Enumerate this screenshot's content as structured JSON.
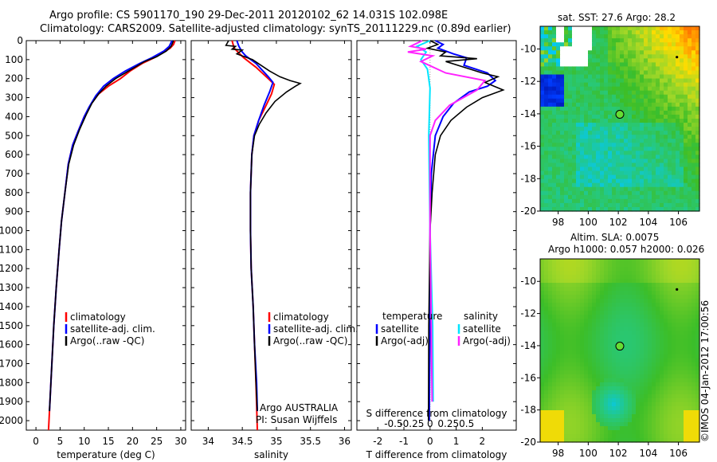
{
  "header": {
    "title_line1": "Argo profile: CS 5901170_190 29-Dec-2011 20120102_62 14.031S 102.098E",
    "title_line2": "Climatology: CARS2009. Satellite-adjusted climatology: synTS_20111229.nc (0.89d earlier)"
  },
  "depth_axis": {
    "min": 0,
    "max": 2050,
    "ticks": [
      0,
      100,
      200,
      300,
      400,
      500,
      600,
      700,
      800,
      900,
      1000,
      1100,
      1200,
      1300,
      1400,
      1500,
      1600,
      1700,
      1800,
      1900,
      2000
    ]
  },
  "colors": {
    "climatology": "#ff0000",
    "satellite": "#0000ff",
    "argo": "#000000",
    "salinity_satellite": "#00e5ff",
    "salinity_argo": "#ff22ff",
    "marker": "#66dd33"
  },
  "chart_data": [
    {
      "type": "line",
      "xlabel": "temperature (deg C)",
      "xlim": [
        -2,
        31
      ],
      "ylim": [
        0,
        2050
      ],
      "xticks": [
        0,
        5,
        10,
        15,
        20,
        25,
        30
      ],
      "legend_position": "bottom-left",
      "series": [
        {
          "name": "climatology",
          "color": "#ff0000",
          "points": [
            [
              28.8,
              0
            ],
            [
              28.5,
              20
            ],
            [
              27.8,
              40
            ],
            [
              26.5,
              60
            ],
            [
              24.5,
              90
            ],
            [
              22,
              120
            ],
            [
              19.5,
              160
            ],
            [
              17.5,
              200
            ],
            [
              15,
              240
            ],
            [
              13,
              280
            ],
            [
              11.5,
              330
            ],
            [
              10,
              400
            ],
            [
              8.7,
              480
            ],
            [
              7.6,
              550
            ],
            [
              6.7,
              650
            ],
            [
              6,
              800
            ],
            [
              5.3,
              950
            ],
            [
              4.8,
              1100
            ],
            [
              4.2,
              1300
            ],
            [
              3.7,
              1500
            ],
            [
              3.3,
              1700
            ],
            [
              2.9,
              1900
            ],
            [
              2.6,
              2050
            ]
          ]
        },
        {
          "name": "satellite-adj. clim.",
          "color": "#0000ff",
          "points": [
            [
              28.2,
              0
            ],
            [
              27.6,
              30
            ],
            [
              26.5,
              55
            ],
            [
              24,
              90
            ],
            [
              21.5,
              120
            ],
            [
              18.5,
              160
            ],
            [
              16,
              200
            ],
            [
              14,
              240
            ],
            [
              12.4,
              290
            ],
            [
              11,
              350
            ],
            [
              10,
              400
            ],
            [
              8.7,
              480
            ],
            [
              7.6,
              550
            ],
            [
              6.7,
              650
            ],
            [
              6,
              800
            ],
            [
              5.3,
              950
            ],
            [
              4.8,
              1100
            ],
            [
              4.2,
              1300
            ],
            [
              3.7,
              1500
            ],
            [
              3.3,
              1700
            ],
            [
              2.9,
              1900
            ],
            [
              2.8,
              1950
            ]
          ]
        },
        {
          "name": "Argo(..raw -QC)",
          "color": "#000000",
          "points": [
            [
              28.5,
              0
            ],
            [
              28,
              30
            ],
            [
              27,
              55
            ],
            [
              25,
              85
            ],
            [
              22.5,
              110
            ],
            [
              20.5,
              140
            ],
            [
              18.5,
              170
            ],
            [
              16.5,
              200
            ],
            [
              14.5,
              240
            ],
            [
              13,
              280
            ],
            [
              11.6,
              330
            ],
            [
              10.4,
              390
            ],
            [
              9,
              470
            ],
            [
              7.8,
              550
            ],
            [
              6.8,
              650
            ],
            [
              6,
              800
            ],
            [
              5.3,
              950
            ],
            [
              4.8,
              1100
            ],
            [
              4.2,
              1300
            ],
            [
              3.7,
              1500
            ],
            [
              3.3,
              1700
            ],
            [
              2.9,
              1900
            ],
            [
              2.8,
              1950
            ]
          ]
        }
      ]
    },
    {
      "type": "line",
      "xlabel": "salinity",
      "xlim": [
        33.75,
        36.1
      ],
      "ylim": [
        0,
        2050
      ],
      "xticks": [
        34,
        34.5,
        35,
        35.5,
        36
      ],
      "legend_position": "bottom-right",
      "annotation_line1": "Argo AUSTRALIA",
      "annotation_line2": "PI: Susan Wijffels",
      "series": [
        {
          "name": "climatology",
          "color": "#ff0000",
          "points": [
            [
              34.35,
              0
            ],
            [
              34.38,
              40
            ],
            [
              34.52,
              90
            ],
            [
              34.7,
              140
            ],
            [
              34.88,
              200
            ],
            [
              34.97,
              230
            ],
            [
              34.93,
              280
            ],
            [
              34.85,
              340
            ],
            [
              34.74,
              420
            ],
            [
              34.67,
              500
            ],
            [
              34.64,
              600
            ],
            [
              34.62,
              800
            ],
            [
              34.62,
              1000
            ],
            [
              34.63,
              1200
            ],
            [
              34.66,
              1400
            ],
            [
              34.68,
              1600
            ],
            [
              34.7,
              1800
            ],
            [
              34.72,
              2050
            ]
          ]
        },
        {
          "name": "satellite-adj. clim.",
          "color": "#0000ff",
          "points": [
            [
              34.42,
              0
            ],
            [
              34.45,
              30
            ],
            [
              34.5,
              60
            ],
            [
              34.55,
              80
            ],
            [
              34.7,
              120
            ],
            [
              34.88,
              190
            ],
            [
              34.95,
              220
            ],
            [
              34.9,
              270
            ],
            [
              34.82,
              340
            ],
            [
              34.74,
              420
            ],
            [
              34.67,
              500
            ],
            [
              34.64,
              600
            ],
            [
              34.62,
              800
            ],
            [
              34.62,
              1000
            ],
            [
              34.63,
              1200
            ],
            [
              34.66,
              1400
            ],
            [
              34.68,
              1600
            ],
            [
              34.71,
              1800
            ],
            [
              34.72,
              1950
            ]
          ]
        },
        {
          "name": "Argo(..raw -QC)",
          "color": "#000000",
          "points": [
            [
              34.3,
              0
            ],
            [
              34.26,
              25
            ],
            [
              34.4,
              30
            ],
            [
              34.35,
              45
            ],
            [
              34.5,
              50
            ],
            [
              34.42,
              70
            ],
            [
              34.65,
              100
            ],
            [
              34.9,
              160
            ],
            [
              35.05,
              190
            ],
            [
              35.2,
              210
            ],
            [
              35.35,
              225
            ],
            [
              35.28,
              240
            ],
            [
              35.15,
              270
            ],
            [
              34.98,
              320
            ],
            [
              34.85,
              380
            ],
            [
              34.75,
              440
            ],
            [
              34.68,
              500
            ],
            [
              34.64,
              600
            ],
            [
              34.62,
              800
            ],
            [
              34.62,
              1000
            ],
            [
              34.63,
              1200
            ],
            [
              34.66,
              1400
            ],
            [
              34.68,
              1600
            ],
            [
              34.7,
              1800
            ],
            [
              34.72,
              1950
            ]
          ]
        }
      ]
    },
    {
      "type": "line",
      "xlabel": "T difference from climatology",
      "x2label": "S difference from climatology",
      "xlim": [
        -2.8,
        3.3
      ],
      "ylim": [
        0,
        2050
      ],
      "xticks": [
        -2,
        -1,
        0,
        1,
        2
      ],
      "xtick_labels": [
        "-2",
        "-1",
        "0",
        "1",
        "2"
      ],
      "x2ticks": [
        -1.4,
        -0.7,
        0,
        0.7,
        1.4
      ],
      "x2tick_labels": [
        "-0.5",
        "-0.25",
        "0",
        "0.25",
        "0.5"
      ],
      "legend_temperature_title": "temperature",
      "legend_salinity_title": "salinity",
      "series": [
        {
          "name": "satellite",
          "group": "temperature",
          "color": "#0000ff",
          "points": [
            [
              0.2,
              0
            ],
            [
              0.5,
              20
            ],
            [
              0.3,
              40
            ],
            [
              0.9,
              70
            ],
            [
              1.4,
              90
            ],
            [
              1.3,
              130
            ],
            [
              2.2,
              170
            ],
            [
              2.5,
              210
            ],
            [
              2.2,
              240
            ],
            [
              1.5,
              270
            ],
            [
              0.9,
              330
            ],
            [
              0.5,
              400
            ],
            [
              0.2,
              500
            ],
            [
              0.05,
              700
            ],
            [
              0,
              1000
            ],
            [
              0,
              1500
            ],
            [
              -0.03,
              2000
            ]
          ]
        },
        {
          "name": "Argo(-adj)",
          "group": "temperature",
          "color": "#000000",
          "points": [
            [
              0,
              0
            ],
            [
              0.3,
              20
            ],
            [
              -0.1,
              40
            ],
            [
              0.6,
              60
            ],
            [
              0.4,
              80
            ],
            [
              1.8,
              95
            ],
            [
              0.6,
              110
            ],
            [
              1.3,
              140
            ],
            [
              2.0,
              170
            ],
            [
              2.6,
              190
            ],
            [
              2.1,
              220
            ],
            [
              2.8,
              260
            ],
            [
              2.0,
              300
            ],
            [
              1.4,
              350
            ],
            [
              0.8,
              420
            ],
            [
              0.4,
              500
            ],
            [
              0.2,
              600
            ],
            [
              0.08,
              800
            ],
            [
              0,
              1000
            ],
            [
              -0.05,
              1500
            ],
            [
              -0.06,
              2000
            ]
          ]
        },
        {
          "name": "satellite",
          "group": "salinity",
          "color": "#00e5ff",
          "points": [
            [
              0,
              0
            ],
            [
              -0.5,
              30
            ],
            [
              -0.15,
              60
            ],
            [
              -0.35,
              100
            ],
            [
              -0.1,
              150
            ],
            [
              0,
              250
            ],
            [
              -0.05,
              500
            ],
            [
              0,
              1000
            ],
            [
              0.1,
              1500
            ],
            [
              0.12,
              1900
            ]
          ]
        },
        {
          "name": "Argo(-adj)",
          "group": "salinity",
          "color": "#ff22ff",
          "points": [
            [
              -0.3,
              0
            ],
            [
              -0.75,
              30
            ],
            [
              -0.15,
              45
            ],
            [
              -0.85,
              60
            ],
            [
              0.1,
              80
            ],
            [
              -0.35,
              110
            ],
            [
              0.6,
              170
            ],
            [
              2.1,
              210
            ],
            [
              1.8,
              260
            ],
            [
              0.75,
              340
            ],
            [
              0.2,
              420
            ],
            [
              0,
              500
            ],
            [
              0,
              1000
            ],
            [
              0.05,
              1500
            ],
            [
              0.08,
              1900
            ]
          ]
        }
      ]
    },
    {
      "type": "heatmap",
      "title": "sat. SST: 27.6 Argo: 28.2",
      "xlim": [
        96.8,
        107.4
      ],
      "ylim": [
        -20,
        -8.6
      ],
      "xticks": [
        98,
        100,
        102,
        104,
        106
      ],
      "yticks": [
        -10,
        -12,
        -14,
        -16,
        -18,
        -20
      ],
      "marker": [
        102.1,
        -14.03
      ],
      "secondary_marker": [
        105.9,
        -10.5
      ]
    },
    {
      "type": "heatmap",
      "title_line1": "Altim. SLA: 0.0075",
      "title_line2": "Argo h1000: 0.057 h2000: 0.026",
      "xlim": [
        96.8,
        107.4
      ],
      "ylim": [
        -20,
        -8.6
      ],
      "xticks": [
        98,
        100,
        102,
        104,
        106
      ],
      "yticks": [
        -10,
        -12,
        -14,
        -16,
        -18,
        -20
      ],
      "marker": [
        102.1,
        -14.03
      ],
      "secondary_marker": [
        105.9,
        -10.5
      ]
    }
  ],
  "credit": "©IMOS 04-Jan-2012 17:00:56"
}
